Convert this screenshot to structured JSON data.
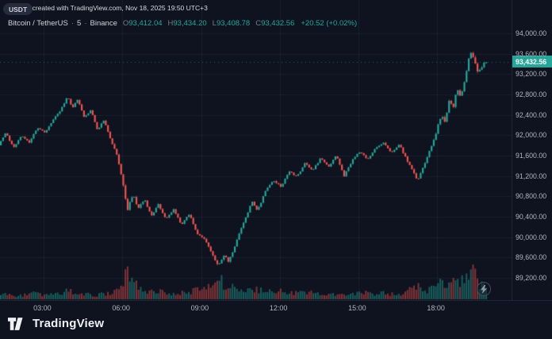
{
  "watermark": "FU9898 created with TradingView.com, Nov 18, 2025 19:50 UTC+3",
  "header": {
    "symbol": "Bitcoin / TetherUS",
    "sep": "·",
    "interval": "5",
    "exchange": "Binance",
    "o_label": "O",
    "o_value": "93,412.04",
    "h_label": "H",
    "h_value": "93,434.20",
    "l_label": "L",
    "l_value": "93,408.78",
    "c_label": "C",
    "c_value": "93,432.56",
    "change": "+20.52 (+0.02%)"
  },
  "price_axis": {
    "currency_button": "USDT",
    "labels": [
      "94,000.00",
      "93,600.00",
      "93,200.00",
      "92,800.00",
      "92,400.00",
      "92,000.00",
      "91,600.00",
      "91,200.00",
      "90,800.00",
      "90,400.00",
      "90,000.00",
      "89,600.00",
      "89,200.00"
    ],
    "current_price": "93,432.56"
  },
  "time_axis": {
    "labels": [
      "03:00",
      "06:00",
      "09:00",
      "12:00",
      "15:00",
      "18:00"
    ]
  },
  "logo": {
    "text": "TradingView"
  },
  "chart_data": {
    "type": "candlestick",
    "title": "Bitcoin / TetherUS · 5 · Binance",
    "symbol": "BTC/USDT",
    "exchange": "Binance",
    "interval_minutes": 5,
    "quote_currency": "USDT",
    "last": {
      "open": 93412.04,
      "high": 93434.2,
      "low": 93408.78,
      "close": 93432.56,
      "change": 20.52,
      "change_pct": 0.02
    },
    "session": {
      "approx_high": 93650,
      "approx_low": 89420
    },
    "y_axis": {
      "min": 89200,
      "max": 94000,
      "step": 400
    },
    "x_axis": {
      "start_hour": 1.333,
      "end_hour": 19.833,
      "tick_hours": [
        3,
        6,
        9,
        12,
        15,
        18
      ],
      "tick_labels": [
        "03:00",
        "06:00",
        "09:00",
        "12:00",
        "15:00",
        "18:00"
      ]
    },
    "up_color": "#26a69a",
    "down_color": "#ef5350",
    "price_path": [
      [
        1.33,
        91800
      ],
      [
        1.6,
        92050
      ],
      [
        1.9,
        91750
      ],
      [
        2.2,
        92000
      ],
      [
        2.5,
        91850
      ],
      [
        2.8,
        92150
      ],
      [
        3.1,
        92050
      ],
      [
        3.4,
        92300
      ],
      [
        3.7,
        92500
      ],
      [
        3.95,
        92750
      ],
      [
        4.15,
        92550
      ],
      [
        4.35,
        92700
      ],
      [
        4.6,
        92350
      ],
      [
        4.85,
        92500
      ],
      [
        5.1,
        92100
      ],
      [
        5.35,
        92300
      ],
      [
        5.6,
        91900
      ],
      [
        5.85,
        91600
      ],
      [
        6.05,
        91100
      ],
      [
        6.25,
        90550
      ],
      [
        6.45,
        90850
      ],
      [
        6.65,
        90550
      ],
      [
        6.9,
        90750
      ],
      [
        7.15,
        90400
      ],
      [
        7.4,
        90650
      ],
      [
        7.7,
        90350
      ],
      [
        8.0,
        90550
      ],
      [
        8.3,
        90250
      ],
      [
        8.6,
        90450
      ],
      [
        8.9,
        90050
      ],
      [
        9.2,
        89950
      ],
      [
        9.45,
        89700
      ],
      [
        9.7,
        89420
      ],
      [
        9.9,
        89650
      ],
      [
        10.1,
        89520
      ],
      [
        10.35,
        89850
      ],
      [
        10.6,
        90200
      ],
      [
        10.8,
        90450
      ],
      [
        11.0,
        90700
      ],
      [
        11.2,
        90520
      ],
      [
        11.5,
        90900
      ],
      [
        11.8,
        91120
      ],
      [
        12.1,
        90980
      ],
      [
        12.4,
        91300
      ],
      [
        12.7,
        91180
      ],
      [
        13.0,
        91450
      ],
      [
        13.3,
        91300
      ],
      [
        13.6,
        91550
      ],
      [
        13.9,
        91380
      ],
      [
        14.2,
        91600
      ],
      [
        14.5,
        91200
      ],
      [
        14.8,
        91500
      ],
      [
        15.1,
        91680
      ],
      [
        15.4,
        91520
      ],
      [
        15.7,
        91750
      ],
      [
        16.0,
        91850
      ],
      [
        16.3,
        91650
      ],
      [
        16.6,
        91820
      ],
      [
        16.9,
        91500
      ],
      [
        17.1,
        91300
      ],
      [
        17.3,
        91120
      ],
      [
        17.55,
        91420
      ],
      [
        17.8,
        91750
      ],
      [
        18.0,
        92050
      ],
      [
        18.2,
        92400
      ],
      [
        18.35,
        92220
      ],
      [
        18.5,
        92700
      ],
      [
        18.65,
        92520
      ],
      [
        18.8,
        92900
      ],
      [
        18.95,
        92750
      ],
      [
        19.1,
        93100
      ],
      [
        19.3,
        93650
      ],
      [
        19.45,
        93520
      ],
      [
        19.6,
        93230
      ],
      [
        19.75,
        93350
      ],
      [
        19.83,
        93432.56
      ]
    ],
    "volume_path": [
      [
        1.33,
        0.18
      ],
      [
        2.0,
        0.12
      ],
      [
        2.6,
        0.2
      ],
      [
        3.0,
        0.14
      ],
      [
        3.5,
        0.18
      ],
      [
        3.95,
        0.3
      ],
      [
        4.4,
        0.2
      ],
      [
        5.0,
        0.15
      ],
      [
        5.6,
        0.25
      ],
      [
        5.9,
        0.45
      ],
      [
        6.1,
        0.95
      ],
      [
        6.3,
        0.75
      ],
      [
        6.6,
        0.45
      ],
      [
        7.0,
        0.3
      ],
      [
        7.5,
        0.25
      ],
      [
        8.0,
        0.22
      ],
      [
        8.6,
        0.28
      ],
      [
        9.0,
        0.35
      ],
      [
        9.4,
        0.5
      ],
      [
        9.7,
        0.65
      ],
      [
        10.0,
        0.45
      ],
      [
        10.4,
        0.35
      ],
      [
        10.8,
        0.4
      ],
      [
        11.2,
        0.3
      ],
      [
        11.7,
        0.25
      ],
      [
        12.0,
        0.3
      ],
      [
        12.5,
        0.2
      ],
      [
        13.0,
        0.25
      ],
      [
        13.5,
        0.2
      ],
      [
        14.0,
        0.18
      ],
      [
        14.5,
        0.22
      ],
      [
        15.0,
        0.25
      ],
      [
        15.5,
        0.18
      ],
      [
        16.0,
        0.22
      ],
      [
        16.5,
        0.2
      ],
      [
        17.0,
        0.35
      ],
      [
        17.3,
        0.45
      ],
      [
        17.6,
        0.3
      ],
      [
        17.9,
        0.5
      ],
      [
        18.1,
        0.85
      ],
      [
        18.3,
        0.6
      ],
      [
        18.5,
        0.7
      ],
      [
        18.8,
        0.55
      ],
      [
        19.0,
        0.65
      ],
      [
        19.2,
        0.8
      ],
      [
        19.4,
        1.0
      ],
      [
        19.6,
        0.55
      ],
      [
        19.83,
        0.4
      ]
    ]
  }
}
